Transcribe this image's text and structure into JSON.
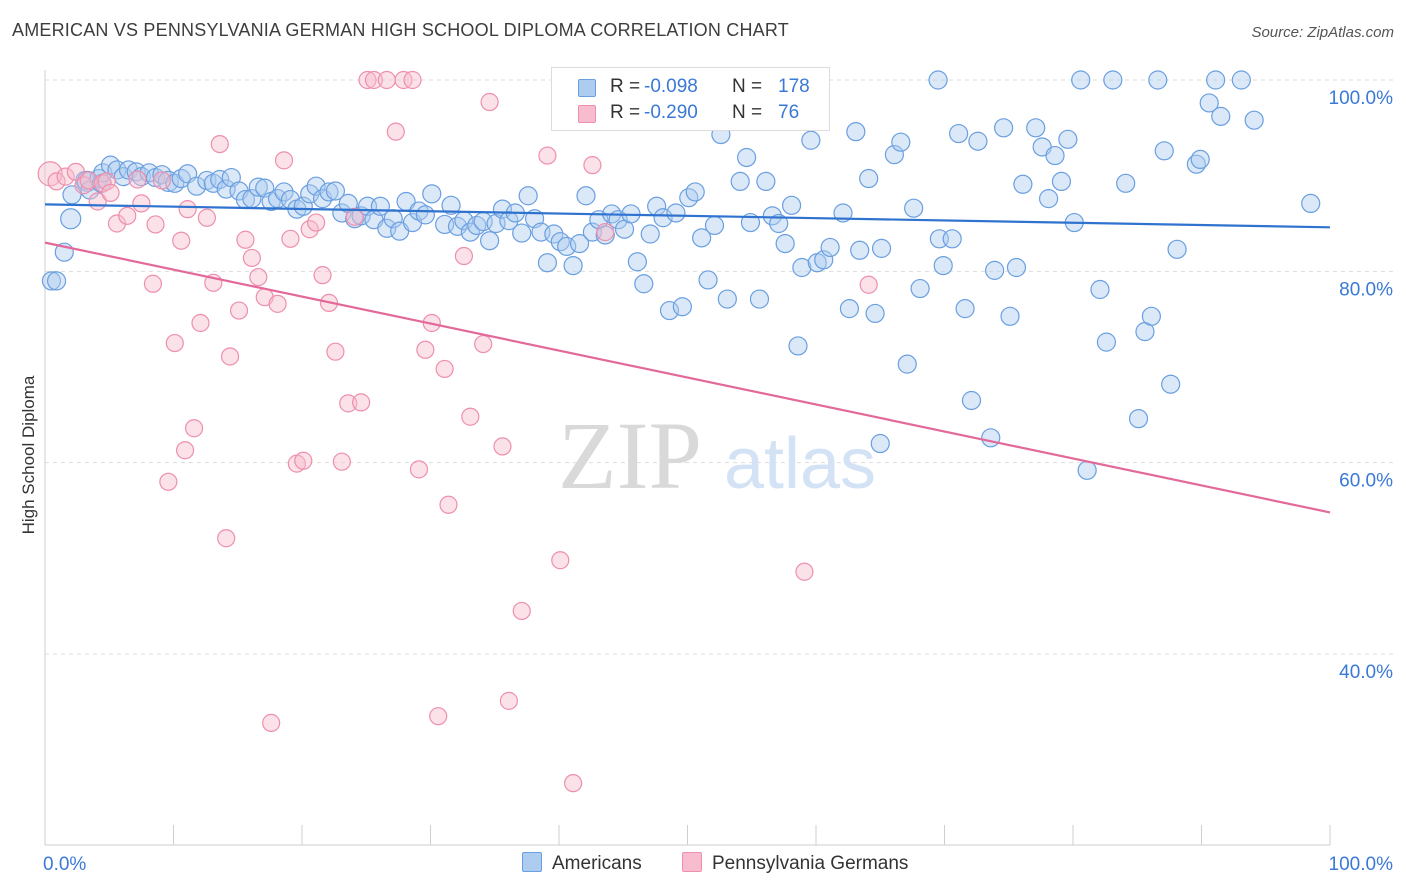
{
  "title": "AMERICAN VS PENNSYLVANIA GERMAN HIGH SCHOOL DIPLOMA CORRELATION CHART",
  "source": "Source: ZipAtlas.com",
  "watermark": {
    "zip": "ZIP",
    "atlas": "atlas"
  },
  "colors": {
    "blue_fill": "#aecbf0",
    "blue_stroke": "#6a9fe0",
    "blue_line": "#2f73cf",
    "pink_fill": "#f7bccd",
    "pink_stroke": "#ee8fad",
    "pink_line": "#e3699a",
    "axis_label": "#3a79d6",
    "grid": "#dddddd"
  },
  "legend": {
    "rows": [
      {
        "series": "Americans",
        "r_label": "R =",
        "r_value": "-0.098",
        "n_label": "N =",
        "n_value": "178"
      },
      {
        "series": "Pennsylvania Germans",
        "r_label": "R =",
        "r_value": "-0.290",
        "n_label": "N =",
        "n_value": "76"
      }
    ]
  },
  "bottom_legend": [
    "Americans",
    "Pennsylvania Germans"
  ],
  "chart_data": {
    "type": "scatter",
    "title": "AMERICAN VS PENNSYLVANIA GERMAN HIGH SCHOOL DIPLOMA CORRELATION CHART",
    "xlabel": "",
    "ylabel": "High School Diploma",
    "xlim": [
      0,
      100
    ],
    "ylim": [
      18,
      102
    ],
    "x_tick_labels": [
      {
        "value": 0,
        "label": "0.0%"
      },
      {
        "value": 100,
        "label": "100.0%"
      }
    ],
    "y_tick_labels": [
      {
        "value": 100,
        "label": "100.0%"
      },
      {
        "value": 80,
        "label": "80.0%"
      },
      {
        "value": 60,
        "label": "60.0%"
      },
      {
        "value": 40,
        "label": "40.0%"
      }
    ],
    "grid": true,
    "series": [
      {
        "name": "Americans",
        "color": "#6a9fe0",
        "trend": {
          "x": [
            0,
            100
          ],
          "y": [
            87.0,
            84.6
          ]
        },
        "points": [
          [
            0.5,
            79
          ],
          [
            0.9,
            79
          ],
          [
            1.5,
            82
          ],
          [
            2,
            85.5
          ],
          [
            2.1,
            88
          ],
          [
            3.1,
            89.5
          ],
          [
            3.3,
            89.4
          ],
          [
            3.5,
            88.5
          ],
          [
            4.2,
            89.7
          ],
          [
            4.4,
            89.2
          ],
          [
            4.5,
            90.3
          ],
          [
            5.1,
            91.1
          ],
          [
            5.6,
            90.6
          ],
          [
            6.1,
            89.9
          ],
          [
            6.5,
            90.6
          ],
          [
            7.1,
            90.4
          ],
          [
            7.5,
            89.9
          ],
          [
            8.1,
            90.3
          ],
          [
            8.6,
            89.8
          ],
          [
            9.1,
            90.1
          ],
          [
            9.6,
            89.4
          ],
          [
            10.1,
            89.2
          ],
          [
            10.6,
            89.7
          ],
          [
            11.1,
            90.2
          ],
          [
            11.8,
            88.9
          ],
          [
            12.6,
            89.5
          ],
          [
            13.1,
            89.2
          ],
          [
            13.6,
            89.6
          ],
          [
            14.1,
            88.6
          ],
          [
            14.5,
            89.8
          ],
          [
            15.1,
            88.4
          ],
          [
            15.6,
            87.5
          ],
          [
            16.1,
            87.6
          ],
          [
            16.6,
            88.8
          ],
          [
            17.1,
            88.7
          ],
          [
            17.6,
            87.3
          ],
          [
            18.1,
            87.6
          ],
          [
            18.6,
            88.3
          ],
          [
            19.1,
            87.5
          ],
          [
            19.6,
            86.5
          ],
          [
            20.1,
            86.8
          ],
          [
            20.6,
            88.1
          ],
          [
            21.1,
            88.9
          ],
          [
            21.6,
            87.6
          ],
          [
            22.1,
            88.3
          ],
          [
            22.6,
            88.4
          ],
          [
            23.1,
            86.1
          ],
          [
            23.6,
            87.1
          ],
          [
            24.1,
            85.5
          ],
          [
            24.6,
            85.8
          ],
          [
            25.1,
            86.8
          ],
          [
            25.6,
            85.4
          ],
          [
            26.1,
            86.8
          ],
          [
            26.6,
            84.5
          ],
          [
            27.1,
            85.5
          ],
          [
            27.6,
            84.2
          ],
          [
            28.1,
            87.3
          ],
          [
            28.6,
            85.1
          ],
          [
            29.1,
            86.3
          ],
          [
            29.6,
            85.9
          ],
          [
            30.1,
            88.1
          ],
          [
            31.1,
            84.9
          ],
          [
            31.6,
            86.9
          ],
          [
            32.1,
            84.7
          ],
          [
            32.6,
            85.3
          ],
          [
            33.1,
            84.1
          ],
          [
            33.6,
            84.8
          ],
          [
            34.1,
            85.2
          ],
          [
            34.6,
            83.2
          ],
          [
            35.1,
            85.0
          ],
          [
            35.6,
            86.5
          ],
          [
            36.1,
            85.3
          ],
          [
            36.6,
            86.1
          ],
          [
            37.1,
            84.0
          ],
          [
            37.6,
            87.9
          ],
          [
            38.1,
            85.5
          ],
          [
            38.6,
            84.1
          ],
          [
            39.1,
            80.9
          ],
          [
            39.6,
            83.9
          ],
          [
            40.1,
            83.1
          ],
          [
            40.6,
            82.6
          ],
          [
            41.1,
            80.6
          ],
          [
            41.6,
            82.9
          ],
          [
            42.1,
            87.9
          ],
          [
            42.6,
            84.1
          ],
          [
            43.1,
            85.4
          ],
          [
            43.6,
            83.8
          ],
          [
            44.1,
            86.0
          ],
          [
            44.6,
            85.4
          ],
          [
            45.1,
            84.4
          ],
          [
            45.6,
            86.0
          ],
          [
            46.1,
            81.0
          ],
          [
            46.6,
            78.7
          ],
          [
            47.1,
            83.9
          ],
          [
            47.6,
            86.8
          ],
          [
            48.1,
            85.6
          ],
          [
            48.6,
            75.9
          ],
          [
            49.1,
            86.1
          ],
          [
            49.6,
            76.3
          ],
          [
            50.1,
            87.7
          ],
          [
            50.6,
            88.3
          ],
          [
            51.1,
            83.5
          ],
          [
            51.6,
            79.1
          ],
          [
            52.1,
            84.8
          ],
          [
            52.6,
            94.3
          ],
          [
            53.1,
            77.1
          ],
          [
            54.1,
            89.4
          ],
          [
            54.6,
            91.9
          ],
          [
            54.9,
            85.1
          ],
          [
            55.6,
            77.1
          ],
          [
            56.1,
            89.4
          ],
          [
            56.6,
            85.8
          ],
          [
            57.1,
            85.0
          ],
          [
            57.6,
            82.9
          ],
          [
            58.1,
            86.9
          ],
          [
            58.6,
            72.2
          ],
          [
            58.9,
            80.4
          ],
          [
            59.6,
            93.7
          ],
          [
            60.1,
            80.9
          ],
          [
            60.6,
            81.2
          ],
          [
            61.1,
            82.5
          ],
          [
            62.1,
            86.1
          ],
          [
            62.6,
            76.1
          ],
          [
            63.1,
            94.6
          ],
          [
            63.4,
            82.2
          ],
          [
            64.1,
            89.7
          ],
          [
            64.6,
            75.6
          ],
          [
            65.1,
            82.4
          ],
          [
            66.1,
            92.2
          ],
          [
            66.6,
            93.5
          ],
          [
            67.1,
            70.3
          ],
          [
            67.6,
            86.6
          ],
          [
            68.1,
            78.2
          ],
          [
            69.6,
            83.4
          ],
          [
            69.9,
            80.6
          ],
          [
            70.6,
            83.4
          ],
          [
            71.1,
            94.4
          ],
          [
            71.6,
            76.1
          ],
          [
            72.1,
            66.5
          ],
          [
            72.6,
            93.6
          ],
          [
            73.6,
            62.6
          ],
          [
            73.9,
            80.1
          ],
          [
            74.6,
            95.0
          ],
          [
            75.1,
            75.3
          ],
          [
            75.6,
            80.4
          ],
          [
            76.1,
            89.1
          ],
          [
            77.1,
            95.0
          ],
          [
            77.6,
            93.0
          ],
          [
            78.1,
            87.6
          ],
          [
            78.6,
            92.1
          ],
          [
            79.1,
            89.4
          ],
          [
            79.6,
            93.8
          ],
          [
            80.1,
            85.1
          ],
          [
            81.1,
            59.2
          ],
          [
            82.1,
            78.1
          ],
          [
            82.6,
            72.6
          ],
          [
            83.1,
            100.0
          ],
          [
            84.1,
            89.2
          ],
          [
            85.1,
            64.6
          ],
          [
            85.6,
            73.7
          ],
          [
            86.1,
            75.3
          ],
          [
            86.6,
            100.0
          ],
          [
            87.1,
            92.6
          ],
          [
            87.6,
            68.2
          ],
          [
            88.1,
            82.3
          ],
          [
            89.6,
            91.2
          ],
          [
            89.9,
            91.7
          ],
          [
            90.6,
            97.6
          ],
          [
            91.1,
            100.0
          ],
          [
            93.1,
            100.0
          ],
          [
            94.1,
            95.8
          ],
          [
            98.5,
            87.1
          ],
          [
            80.6,
            100.0
          ],
          [
            42.9,
            97.5
          ],
          [
            69.5,
            100.0
          ],
          [
            49.0,
            96.5
          ],
          [
            91.5,
            96.2
          ],
          [
            65.0,
            62.0
          ]
        ],
        "sizes_large_first": 6
      },
      {
        "name": "Pennsylvania Germans",
        "color": "#ee8fad",
        "trend": {
          "x": [
            0,
            100
          ],
          "y": [
            83.0,
            54.8
          ]
        },
        "points": [
          [
            0.4,
            90.2
          ],
          [
            0.9,
            89.4
          ],
          [
            1.6,
            89.9
          ],
          [
            2.4,
            90.4
          ],
          [
            3.0,
            89.0
          ],
          [
            3.4,
            89.5
          ],
          [
            4.1,
            87.3
          ],
          [
            4.5,
            89.2
          ],
          [
            4.8,
            89.4
          ],
          [
            5.1,
            88.2
          ],
          [
            5.6,
            85.0
          ],
          [
            6.4,
            85.8
          ],
          [
            7.2,
            89.6
          ],
          [
            7.5,
            87.1
          ],
          [
            8.4,
            78.7
          ],
          [
            8.6,
            84.9
          ],
          [
            9.1,
            89.5
          ],
          [
            9.6,
            58.0
          ],
          [
            10.1,
            72.5
          ],
          [
            10.6,
            83.2
          ],
          [
            10.9,
            61.3
          ],
          [
            11.1,
            86.5
          ],
          [
            11.6,
            63.6
          ],
          [
            12.1,
            74.6
          ],
          [
            12.6,
            85.6
          ],
          [
            13.1,
            78.8
          ],
          [
            13.6,
            93.3
          ],
          [
            14.1,
            52.1
          ],
          [
            14.4,
            71.1
          ],
          [
            15.1,
            75.9
          ],
          [
            15.6,
            83.3
          ],
          [
            16.1,
            81.4
          ],
          [
            16.6,
            79.4
          ],
          [
            17.1,
            77.3
          ],
          [
            17.6,
            32.8
          ],
          [
            18.1,
            76.6
          ],
          [
            18.6,
            91.6
          ],
          [
            19.1,
            83.4
          ],
          [
            19.6,
            59.9
          ],
          [
            20.1,
            60.2
          ],
          [
            20.6,
            84.4
          ],
          [
            21.1,
            85.1
          ],
          [
            21.6,
            79.6
          ],
          [
            22.1,
            76.7
          ],
          [
            22.6,
            71.6
          ],
          [
            23.1,
            60.1
          ],
          [
            23.6,
            66.2
          ],
          [
            24.1,
            85.7
          ],
          [
            24.6,
            66.3
          ],
          [
            25.1,
            100.0
          ],
          [
            25.6,
            100.0
          ],
          [
            26.6,
            100.0
          ],
          [
            27.3,
            94.6
          ],
          [
            27.9,
            100.0
          ],
          [
            28.6,
            100.0
          ],
          [
            29.1,
            59.3
          ],
          [
            29.6,
            71.8
          ],
          [
            30.1,
            74.6
          ],
          [
            30.6,
            33.5
          ],
          [
            31.1,
            69.8
          ],
          [
            31.4,
            55.6
          ],
          [
            32.6,
            81.6
          ],
          [
            33.1,
            64.8
          ],
          [
            34.1,
            72.4
          ],
          [
            34.6,
            97.7
          ],
          [
            35.6,
            61.7
          ],
          [
            36.1,
            35.1
          ],
          [
            37.1,
            44.5
          ],
          [
            39.1,
            92.1
          ],
          [
            40.1,
            49.8
          ],
          [
            41.1,
            26.5
          ],
          [
            42.6,
            91.1
          ],
          [
            43.6,
            84.1
          ],
          [
            46.1,
            100.0
          ],
          [
            59.1,
            48.6
          ],
          [
            64.1,
            78.6
          ]
        ]
      }
    ]
  }
}
